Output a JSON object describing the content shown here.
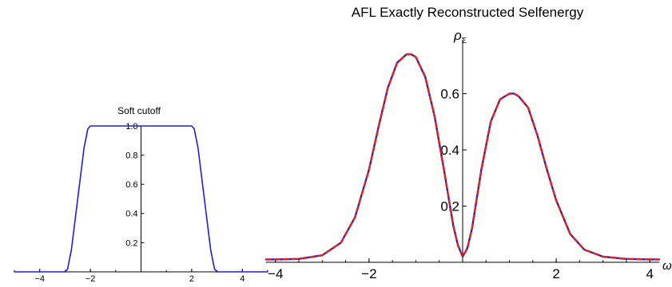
{
  "chart_data": [
    {
      "type": "line",
      "title": "Soft cutoff",
      "xlabel": "",
      "ylabel": "",
      "xlim": [
        -5,
        5
      ],
      "ylim": [
        0,
        1.0
      ],
      "x_ticks": [
        -4,
        -2,
        2,
        4
      ],
      "y_ticks": [
        0.2,
        0.4,
        0.6,
        0.8,
        1.0
      ],
      "x_tick_labels": [
        "−4",
        "−2",
        "2",
        "4"
      ],
      "y_tick_labels": [
        "0.2",
        "0.4",
        "0.6",
        "0.8",
        "1.0"
      ],
      "grid": false,
      "series": [
        {
          "color": "#1f1fd0",
          "x": [
            -5,
            -3.0,
            -2.9,
            -2.75,
            -2.5,
            -2.25,
            -2.1,
            -2.0,
            2.0,
            2.1,
            2.25,
            2.5,
            2.75,
            2.9,
            3.0,
            5
          ],
          "y": [
            0,
            0,
            0.02,
            0.15,
            0.5,
            0.85,
            0.98,
            1.0,
            1.0,
            0.98,
            0.85,
            0.5,
            0.15,
            0.02,
            0,
            0
          ]
        }
      ]
    },
    {
      "type": "line",
      "title": "AFL Exactly Reconstructed Selfenergy",
      "xlabel": "ω",
      "ylabel": "ρ",
      "ylabel_sub": "Σ",
      "xlim": [
        -4.2,
        4.2
      ],
      "ylim": [
        0,
        0.78
      ],
      "x_ticks": [
        -4,
        -2,
        2,
        4
      ],
      "y_ticks": [
        0.2,
        0.4,
        0.6
      ],
      "x_tick_labels": [
        "−4",
        "−2",
        "2",
        "4"
      ],
      "y_tick_labels": [
        "0.2",
        "0.4",
        "0.6"
      ],
      "grid": false,
      "series": [
        {
          "color": "#2020c8",
          "style": "solid",
          "x": [
            -4.2,
            -4.0,
            -3.5,
            -3.0,
            -2.6,
            -2.3,
            -2.0,
            -1.8,
            -1.6,
            -1.4,
            -1.2,
            -1.1,
            -1.0,
            -0.8,
            -0.6,
            -0.4,
            -0.2,
            -0.1,
            0.0,
            0.1,
            0.2,
            0.4,
            0.6,
            0.8,
            1.0,
            1.1,
            1.2,
            1.4,
            1.6,
            1.8,
            2.0,
            2.3,
            2.6,
            3.0,
            3.5,
            4.0,
            4.2
          ],
          "y": [
            0.01,
            0.01,
            0.012,
            0.025,
            0.07,
            0.16,
            0.33,
            0.48,
            0.62,
            0.71,
            0.74,
            0.74,
            0.73,
            0.66,
            0.52,
            0.33,
            0.13,
            0.06,
            0.02,
            0.05,
            0.12,
            0.33,
            0.5,
            0.58,
            0.6,
            0.6,
            0.59,
            0.55,
            0.45,
            0.33,
            0.22,
            0.1,
            0.045,
            0.02,
            0.012,
            0.01,
            0.01
          ]
        },
        {
          "color": "#e02020",
          "style": "dashed",
          "x": [
            -4.2,
            -4.0,
            -3.5,
            -3.0,
            -2.6,
            -2.3,
            -2.0,
            -1.8,
            -1.6,
            -1.4,
            -1.2,
            -1.1,
            -1.0,
            -0.8,
            -0.6,
            -0.4,
            -0.2,
            -0.1,
            0.0,
            0.1,
            0.2,
            0.4,
            0.6,
            0.8,
            1.0,
            1.1,
            1.2,
            1.4,
            1.6,
            1.8,
            2.0,
            2.3,
            2.6,
            3.0,
            3.5,
            4.0,
            4.2
          ],
          "y": [
            0.01,
            0.01,
            0.012,
            0.025,
            0.07,
            0.16,
            0.33,
            0.48,
            0.62,
            0.71,
            0.74,
            0.74,
            0.73,
            0.66,
            0.52,
            0.33,
            0.13,
            0.06,
            0.02,
            0.05,
            0.12,
            0.33,
            0.5,
            0.58,
            0.6,
            0.6,
            0.59,
            0.55,
            0.45,
            0.33,
            0.22,
            0.1,
            0.045,
            0.02,
            0.012,
            0.01,
            0.01
          ]
        }
      ]
    }
  ]
}
